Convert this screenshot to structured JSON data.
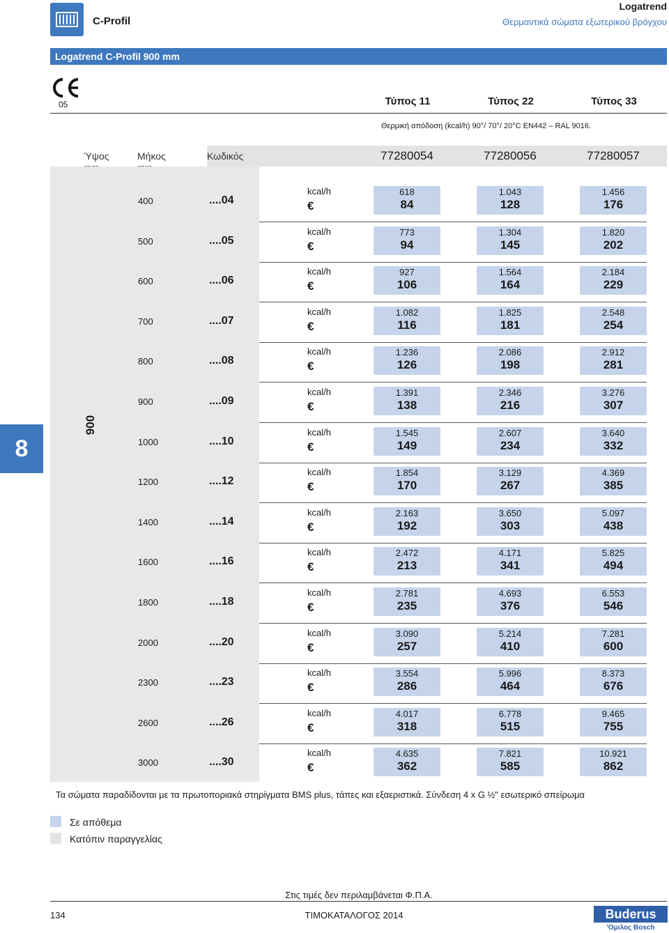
{
  "header": {
    "section": "C-Profil",
    "brand": "Logatrend",
    "subtitle": "Θερμαντικά σώματα εξωτερικού βρόγχου",
    "band_title": "Logatrend C-Profil  900 mm"
  },
  "ce": {
    "mark": "CE",
    "number": "05"
  },
  "types": [
    "Τύπος 11",
    "Τύπος 22",
    "Τύπος 33"
  ],
  "spec_line": "Θερμική απόδοση (kcal/h) 90°/ 70°/ 20°C EN442 – RAL 9016.",
  "columns": {
    "height": "Ύψος",
    "height_unit": "mm",
    "length": "Μήκος",
    "length_unit": "mm",
    "code": "Κωδικός"
  },
  "codes": [
    "77280054",
    "77280056",
    "77280057"
  ],
  "height_value": "900",
  "side_tab": "8",
  "unit_kcal": "kcal/h",
  "unit_eur": "€",
  "rows": [
    {
      "len": "400",
      "suf": "....04",
      "v": [
        [
          "618",
          "84"
        ],
        [
          "1.043",
          "128"
        ],
        [
          "1.456",
          "176"
        ]
      ]
    },
    {
      "len": "500",
      "suf": "....05",
      "v": [
        [
          "773",
          "94"
        ],
        [
          "1.304",
          "145"
        ],
        [
          "1.820",
          "202"
        ]
      ]
    },
    {
      "len": "600",
      "suf": "....06",
      "v": [
        [
          "927",
          "106"
        ],
        [
          "1.564",
          "164"
        ],
        [
          "2.184",
          "229"
        ]
      ]
    },
    {
      "len": "700",
      "suf": "....07",
      "v": [
        [
          "1.082",
          "116"
        ],
        [
          "1.825",
          "181"
        ],
        [
          "2.548",
          "254"
        ]
      ]
    },
    {
      "len": "800",
      "suf": "....08",
      "v": [
        [
          "1.236",
          "126"
        ],
        [
          "2.086",
          "198"
        ],
        [
          "2.912",
          "281"
        ]
      ]
    },
    {
      "len": "900",
      "suf": "....09",
      "v": [
        [
          "1.391",
          "138"
        ],
        [
          "2.346",
          "216"
        ],
        [
          "3.276",
          "307"
        ]
      ]
    },
    {
      "len": "1000",
      "suf": "....10",
      "v": [
        [
          "1.545",
          "149"
        ],
        [
          "2.607",
          "234"
        ],
        [
          "3.640",
          "332"
        ]
      ]
    },
    {
      "len": "1200",
      "suf": "....12",
      "v": [
        [
          "1.854",
          "170"
        ],
        [
          "3.129",
          "267"
        ],
        [
          "4.369",
          "385"
        ]
      ]
    },
    {
      "len": "1400",
      "suf": "....14",
      "v": [
        [
          "2.163",
          "192"
        ],
        [
          "3.650",
          "303"
        ],
        [
          "5.097",
          "438"
        ]
      ]
    },
    {
      "len": "1600",
      "suf": "....16",
      "v": [
        [
          "2.472",
          "213"
        ],
        [
          "4.171",
          "341"
        ],
        [
          "5.825",
          "494"
        ]
      ]
    },
    {
      "len": "1800",
      "suf": "....18",
      "v": [
        [
          "2.781",
          "235"
        ],
        [
          "4.693",
          "376"
        ],
        [
          "6.553",
          "546"
        ]
      ]
    },
    {
      "len": "2000",
      "suf": "....20",
      "v": [
        [
          "3.090",
          "257"
        ],
        [
          "5.214",
          "410"
        ],
        [
          "7.281",
          "600"
        ]
      ]
    },
    {
      "len": "2300",
      "suf": "....23",
      "v": [
        [
          "3.554",
          "286"
        ],
        [
          "5.996",
          "464"
        ],
        [
          "8.373",
          "676"
        ]
      ]
    },
    {
      "len": "2600",
      "suf": "....26",
      "v": [
        [
          "4.017",
          "318"
        ],
        [
          "6.778",
          "515"
        ],
        [
          "9.465",
          "755"
        ]
      ]
    },
    {
      "len": "3000",
      "suf": "....30",
      "v": [
        [
          "4.635",
          "362"
        ],
        [
          "7.821",
          "585"
        ],
        [
          "10.921",
          "862"
        ]
      ]
    }
  ],
  "note": "Τα σώματα παραδίδονται με τα πρωτοποριακά στηρίγματα BMS plus, τάπες και εξαεριστικά. Σύνδεση 4 x G ½\" εσωτερικό σπείρωμα",
  "legend": [
    {
      "label": "Σε απόθεμα",
      "color": "#c5d4ea"
    },
    {
      "label": "Κατόπιν παραγγελίας",
      "color": "#e3e3e3"
    }
  ],
  "footer": {
    "vat": "Στις τιμές δεν περιλαμβάνεται Φ.Π.Α.",
    "page": "134",
    "catalog": "ΤΙΜΟΚΑΤΑΛΟΓΟΣ 2014",
    "logo": "Buderus",
    "logo_sub": "'Ομιλος Bosch"
  },
  "colors": {
    "accent": "#3e78be",
    "stock": "#c5d4ea",
    "order": "#e3e3e3"
  }
}
